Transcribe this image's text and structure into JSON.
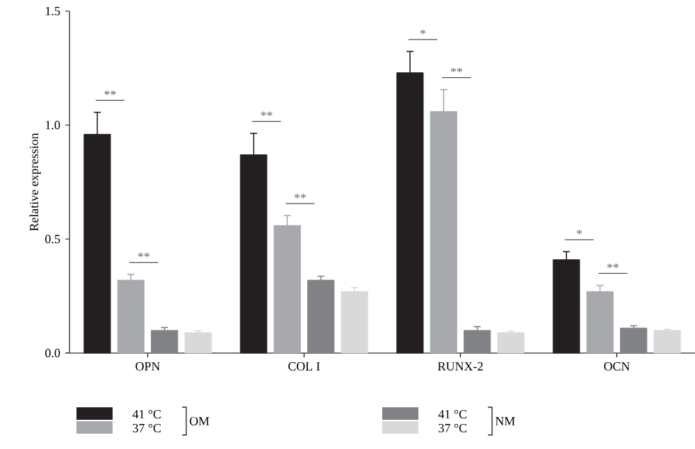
{
  "chart_data": {
    "type": "bar",
    "ylabel": "Relative expression",
    "categories": [
      "OPN",
      "COL I",
      "RUNX-2",
      "OCN"
    ],
    "series": [
      {
        "name": "41 °C",
        "color": "#231f20",
        "values": [
          0.96,
          0.87,
          1.23,
          0.41
        ],
        "errors": [
          0.096,
          0.094,
          0.093,
          0.035
        ]
      },
      {
        "name": "37 °C",
        "color": "#a7a9ac",
        "values": [
          0.32,
          0.56,
          1.06,
          0.27
        ],
        "errors": [
          0.025,
          0.043,
          0.096,
          0.027
        ]
      },
      {
        "name": "41 °C",
        "color": "#808285",
        "values": [
          0.1,
          0.32,
          0.1,
          0.11
        ],
        "errors": [
          0.012,
          0.017,
          0.016,
          0.01
        ]
      },
      {
        "name": "37 °C",
        "color": "#d9d9d9",
        "values": [
          0.09,
          0.27,
          0.09,
          0.1
        ],
        "errors": [
          0.008,
          0.017,
          0.006,
          0.004
        ]
      }
    ],
    "ylim": [
      0,
      1.5
    ],
    "yticks": [
      {
        "value": 0,
        "label": "0.0"
      },
      {
        "value": 0.5,
        "label": "0.5"
      },
      {
        "value": 1.0,
        "label": "1.0"
      },
      {
        "value": 1.5,
        "label": "1.5"
      }
    ],
    "annotations": [
      "**",
      "**",
      "**",
      "**",
      "*",
      "**",
      "*",
      "**",
      "OM",
      "NM"
    ],
    "grid": false,
    "legend": "bottom"
  }
}
